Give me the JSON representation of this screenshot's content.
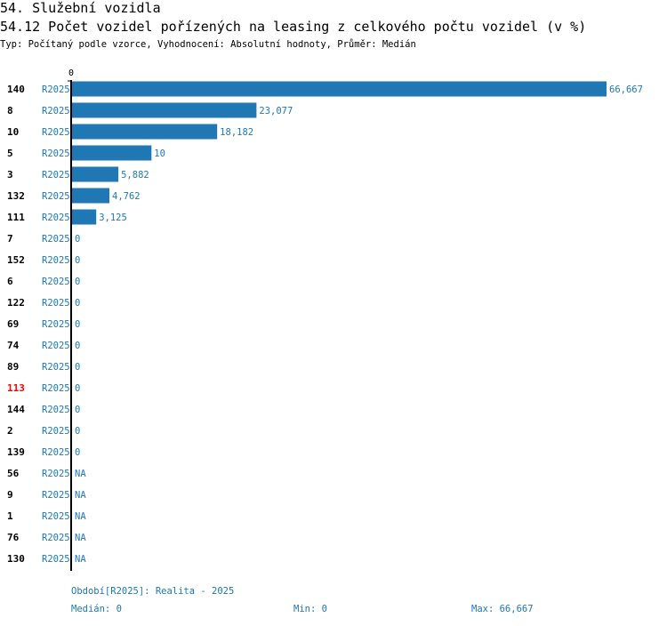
{
  "section_title": "54. Služební vozidla",
  "chart_title": "54.12 Počet vozidel pořízených na leasing z celkového počtu vozidel (v %)",
  "subtitle": "Typ: Počítaný podle vzorce, Vyhodnocení: Absolutní hodnoty, Průměr: Medián",
  "colors": {
    "bar": "#1f77b4",
    "label": "#1f77b4",
    "highlight": "#ff0000"
  },
  "chart_data": {
    "type": "bar",
    "orientation": "horizontal",
    "axis_tick_label": "0",
    "xlim": [
      0,
      66.667
    ],
    "series_name": "R2025",
    "rows": [
      {
        "id": "140",
        "series": "R2025",
        "value": 66.667,
        "label": "66,667"
      },
      {
        "id": "8",
        "series": "R2025",
        "value": 23.077,
        "label": "23,077"
      },
      {
        "id": "10",
        "series": "R2025",
        "value": 18.182,
        "label": "18,182"
      },
      {
        "id": "5",
        "series": "R2025",
        "value": 10,
        "label": "10"
      },
      {
        "id": "3",
        "series": "R2025",
        "value": 5.882,
        "label": "5,882"
      },
      {
        "id": "132",
        "series": "R2025",
        "value": 4.762,
        "label": "4,762"
      },
      {
        "id": "111",
        "series": "R2025",
        "value": 3.125,
        "label": "3,125"
      },
      {
        "id": "7",
        "series": "R2025",
        "value": 0,
        "label": "0"
      },
      {
        "id": "152",
        "series": "R2025",
        "value": 0,
        "label": "0"
      },
      {
        "id": "6",
        "series": "R2025",
        "value": 0,
        "label": "0"
      },
      {
        "id": "122",
        "series": "R2025",
        "value": 0,
        "label": "0"
      },
      {
        "id": "69",
        "series": "R2025",
        "value": 0,
        "label": "0"
      },
      {
        "id": "74",
        "series": "R2025",
        "value": 0,
        "label": "0"
      },
      {
        "id": "89",
        "series": "R2025",
        "value": 0,
        "label": "0"
      },
      {
        "id": "113",
        "series": "R2025",
        "value": 0,
        "label": "0",
        "highlight": true
      },
      {
        "id": "144",
        "series": "R2025",
        "value": 0,
        "label": "0"
      },
      {
        "id": "2",
        "series": "R2025",
        "value": 0,
        "label": "0"
      },
      {
        "id": "139",
        "series": "R2025",
        "value": 0,
        "label": "0"
      },
      {
        "id": "56",
        "series": "R2025",
        "value": null,
        "label": "NA"
      },
      {
        "id": "9",
        "series": "R2025",
        "value": null,
        "label": "NA"
      },
      {
        "id": "1",
        "series": "R2025",
        "value": null,
        "label": "NA"
      },
      {
        "id": "76",
        "series": "R2025",
        "value": null,
        "label": "NA"
      },
      {
        "id": "130",
        "series": "R2025",
        "value": null,
        "label": "NA"
      }
    ]
  },
  "footer": {
    "period": "Období[R2025]: Realita - 2025",
    "median": "Medián: 0",
    "min": "Min: 0",
    "max": "Max: 66,667"
  }
}
